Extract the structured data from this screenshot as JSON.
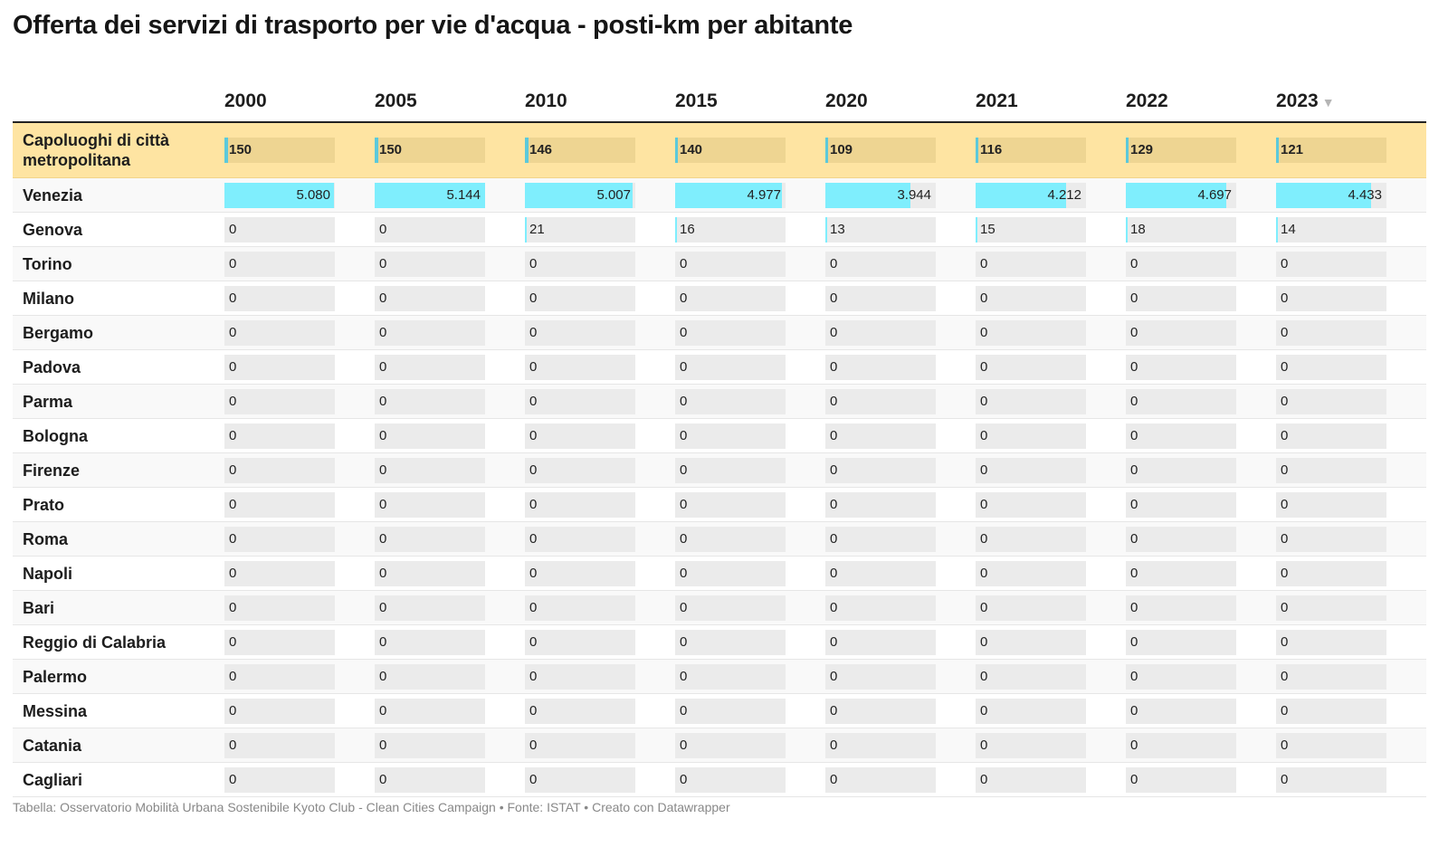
{
  "title": "Offerta dei servizi di trasporto per vie d'acqua - posti-km per abitante",
  "footer": "Tabella: Osservatorio Mobilità Urbana Sostenibile Kyoto Club - Clean Cities Campaign • Fonte: ISTAT • Creato con Datawrapper",
  "sort_icon": "▼",
  "colors": {
    "bar": "#7feefd",
    "bar_bg": "#ebebeb",
    "highlight_row": "#fee4a2"
  },
  "chart_data": {
    "type": "table",
    "title": "Offerta dei servizi di trasporto per vie d'acqua - posti-km per abitante",
    "columns": [
      "2000",
      "2005",
      "2010",
      "2015",
      "2020",
      "2021",
      "2022",
      "2023"
    ],
    "sorted_column": "2023",
    "max_value": 5144,
    "rows": [
      {
        "name": "Capoluoghi di città metropolitana",
        "highlight": true,
        "values": [
          150,
          150,
          146,
          140,
          109,
          116,
          129,
          121
        ],
        "labels": [
          "150",
          "150",
          "146",
          "140",
          "109",
          "116",
          "129",
          "121"
        ]
      },
      {
        "name": "Venezia",
        "values": [
          5080,
          5144,
          5007,
          4977,
          3944,
          4212,
          4697,
          4433
        ],
        "labels": [
          "5.080",
          "5.144",
          "5.007",
          "4.977",
          "3.944",
          "4.212",
          "4.697",
          "4.433"
        ]
      },
      {
        "name": "Genova",
        "values": [
          0,
          0,
          21,
          16,
          13,
          15,
          18,
          14
        ],
        "labels": [
          "0",
          "0",
          "21",
          "16",
          "13",
          "15",
          "18",
          "14"
        ]
      },
      {
        "name": "Torino",
        "values": [
          0,
          0,
          0,
          0,
          0,
          0,
          0,
          0
        ],
        "labels": [
          "0",
          "0",
          "0",
          "0",
          "0",
          "0",
          "0",
          "0"
        ]
      },
      {
        "name": "Milano",
        "values": [
          0,
          0,
          0,
          0,
          0,
          0,
          0,
          0
        ],
        "labels": [
          "0",
          "0",
          "0",
          "0",
          "0",
          "0",
          "0",
          "0"
        ]
      },
      {
        "name": "Bergamo",
        "values": [
          0,
          0,
          0,
          0,
          0,
          0,
          0,
          0
        ],
        "labels": [
          "0",
          "0",
          "0",
          "0",
          "0",
          "0",
          "0",
          "0"
        ]
      },
      {
        "name": "Padova",
        "values": [
          0,
          0,
          0,
          0,
          0,
          0,
          0,
          0
        ],
        "labels": [
          "0",
          "0",
          "0",
          "0",
          "0",
          "0",
          "0",
          "0"
        ]
      },
      {
        "name": "Parma",
        "values": [
          0,
          0,
          0,
          0,
          0,
          0,
          0,
          0
        ],
        "labels": [
          "0",
          "0",
          "0",
          "0",
          "0",
          "0",
          "0",
          "0"
        ]
      },
      {
        "name": "Bologna",
        "values": [
          0,
          0,
          0,
          0,
          0,
          0,
          0,
          0
        ],
        "labels": [
          "0",
          "0",
          "0",
          "0",
          "0",
          "0",
          "0",
          "0"
        ]
      },
      {
        "name": "Firenze",
        "values": [
          0,
          0,
          0,
          0,
          0,
          0,
          0,
          0
        ],
        "labels": [
          "0",
          "0",
          "0",
          "0",
          "0",
          "0",
          "0",
          "0"
        ]
      },
      {
        "name": "Prato",
        "values": [
          0,
          0,
          0,
          0,
          0,
          0,
          0,
          0
        ],
        "labels": [
          "0",
          "0",
          "0",
          "0",
          "0",
          "0",
          "0",
          "0"
        ]
      },
      {
        "name": "Roma",
        "values": [
          0,
          0,
          0,
          0,
          0,
          0,
          0,
          0
        ],
        "labels": [
          "0",
          "0",
          "0",
          "0",
          "0",
          "0",
          "0",
          "0"
        ]
      },
      {
        "name": "Napoli",
        "values": [
          0,
          0,
          0,
          0,
          0,
          0,
          0,
          0
        ],
        "labels": [
          "0",
          "0",
          "0",
          "0",
          "0",
          "0",
          "0",
          "0"
        ]
      },
      {
        "name": "Bari",
        "values": [
          0,
          0,
          0,
          0,
          0,
          0,
          0,
          0
        ],
        "labels": [
          "0",
          "0",
          "0",
          "0",
          "0",
          "0",
          "0",
          "0"
        ]
      },
      {
        "name": "Reggio di Calabria",
        "values": [
          0,
          0,
          0,
          0,
          0,
          0,
          0,
          0
        ],
        "labels": [
          "0",
          "0",
          "0",
          "0",
          "0",
          "0",
          "0",
          "0"
        ]
      },
      {
        "name": "Palermo",
        "values": [
          0,
          0,
          0,
          0,
          0,
          0,
          0,
          0
        ],
        "labels": [
          "0",
          "0",
          "0",
          "0",
          "0",
          "0",
          "0",
          "0"
        ]
      },
      {
        "name": "Messina",
        "values": [
          0,
          0,
          0,
          0,
          0,
          0,
          0,
          0
        ],
        "labels": [
          "0",
          "0",
          "0",
          "0",
          "0",
          "0",
          "0",
          "0"
        ]
      },
      {
        "name": "Catania",
        "values": [
          0,
          0,
          0,
          0,
          0,
          0,
          0,
          0
        ],
        "labels": [
          "0",
          "0",
          "0",
          "0",
          "0",
          "0",
          "0",
          "0"
        ]
      },
      {
        "name": "Cagliari",
        "values": [
          0,
          0,
          0,
          0,
          0,
          0,
          0,
          0
        ],
        "labels": [
          "0",
          "0",
          "0",
          "0",
          "0",
          "0",
          "0",
          "0"
        ]
      }
    ]
  }
}
